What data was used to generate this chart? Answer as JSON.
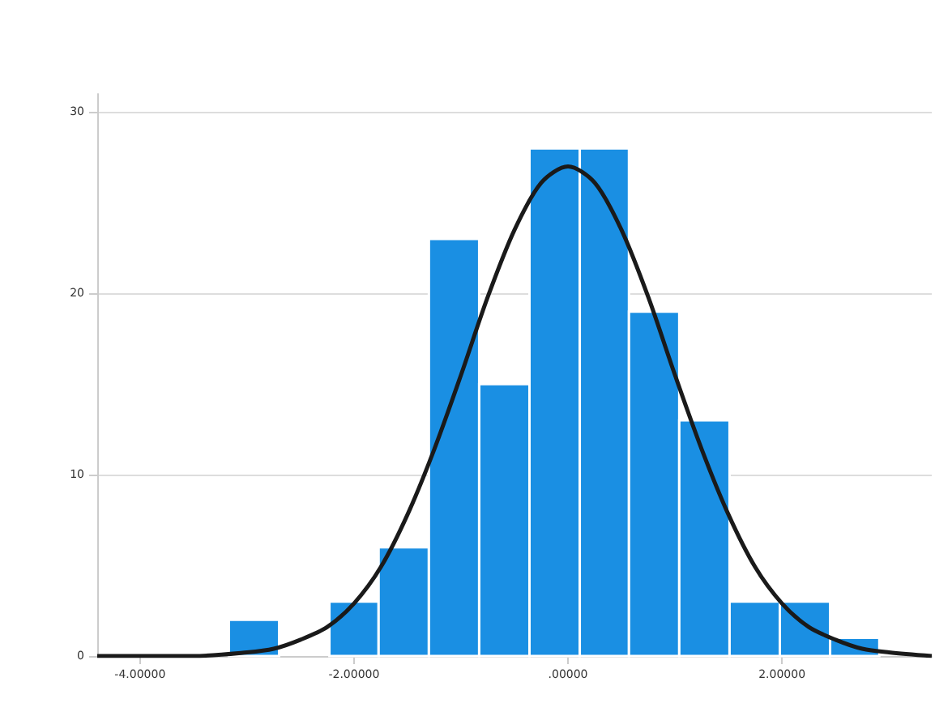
{
  "chart_data": {
    "type": "histogram",
    "bins": [
      -3.17,
      -2.7,
      -2.23,
      -1.77,
      -1.3,
      -0.83,
      -0.36,
      0.11,
      0.57,
      1.04,
      1.51,
      1.98,
      2.45,
      2.91
    ],
    "values": [
      2,
      0,
      3,
      6,
      23,
      15,
      28,
      28,
      19,
      13,
      3,
      3,
      1
    ],
    "color": "#1a8fe3",
    "series": [
      {
        "type": "line",
        "color": "#1a1a1a",
        "x": [
          -4.4,
          -3.5,
          -3,
          -2.75,
          -2.5,
          -2.25,
          -2,
          -1.75,
          -1.5,
          -1.25,
          -1,
          -0.75,
          -0.5,
          -0.25,
          0,
          0.25,
          0.5,
          0.75,
          1,
          1.25,
          1.5,
          1.75,
          2,
          2.25,
          2.5,
          2.75,
          3,
          3.4
        ],
        "values": [
          0,
          0,
          0.2,
          0.4,
          0.9,
          1.6,
          2.9,
          4.9,
          7.8,
          11.4,
          15.5,
          19.8,
          23.5,
          26.1,
          27,
          26.1,
          23.5,
          19.8,
          15.5,
          11.4,
          7.8,
          4.9,
          2.9,
          1.6,
          0.9,
          0.4,
          0.2,
          0
        ]
      }
    ],
    "xlim": [
      -4.4,
      3.4
    ],
    "xticks": [
      {
        "value": -4,
        "label": "-4.00000"
      },
      {
        "value": -2,
        "label": "-2.00000"
      },
      {
        "value": 0,
        "label": ".00000"
      },
      {
        "value": 2,
        "label": "2.00000"
      }
    ],
    "ylim": [
      0,
      31
    ],
    "yticks": [
      0,
      10,
      20,
      30
    ],
    "grid": "y",
    "marker": "none",
    "line_style": "solid"
  }
}
